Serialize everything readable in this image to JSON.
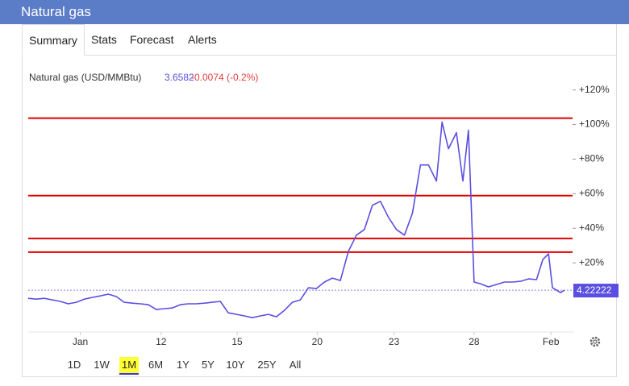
{
  "header": {
    "title": "Natural gas"
  },
  "tabs": [
    "Summary",
    "Stats",
    "Forecast",
    "Alerts"
  ],
  "selected_tab": "Summary",
  "ranges": [
    "1D",
    "1W",
    "1M",
    "6M",
    "1Y",
    "5Y",
    "10Y",
    "25Y",
    "All"
  ],
  "selected_range": "1M",
  "chart_data": {
    "type": "line",
    "price": "3.6582",
    "change": "-0.0074 (-0.2%)",
    "series": [
      {
        "name": "Natural gas (USD/MMBtu)",
        "color": "#5a4fe0",
        "x": [
          0,
          1,
          2,
          3,
          4,
          5,
          6,
          7,
          8,
          9,
          10,
          11,
          12,
          13,
          14,
          15,
          16,
          17,
          18,
          19,
          20,
          21,
          22,
          23,
          24,
          25,
          26,
          27,
          28,
          29,
          30,
          31,
          32,
          33,
          34,
          35,
          36,
          37,
          38,
          39,
          40,
          41,
          42,
          43,
          44,
          45,
          46,
          47,
          48,
          49,
          50,
          51,
          51.7,
          52.5,
          53.5,
          54.3,
          55,
          55.7,
          56.5,
          57.5,
          58.5,
          59.5,
          60.5,
          61.5,
          62.5,
          63.5,
          64.3,
          65,
          65.5,
          66.5,
          67
        ],
        "values": [
          -0.5,
          -1,
          -0.5,
          -1.4,
          -2.3,
          -3.7,
          -2.8,
          -1,
          0,
          0.9,
          1.9,
          0.5,
          -2.8,
          -3.3,
          -3.7,
          -4.2,
          -7,
          -6.5,
          -6.1,
          -4.2,
          -3.7,
          -3.7,
          -3.3,
          -2.8,
          -2.3,
          -8.9,
          -9.8,
          -10.7,
          -11.7,
          -10.7,
          -9.8,
          -11.2,
          -7.5,
          -2.8,
          -1.4,
          5.6,
          5.1,
          8.9,
          11.2,
          9.8,
          26.6,
          36,
          39.3,
          53.3,
          55.6,
          46.3,
          39.3,
          36,
          48.6,
          76.6,
          76.6,
          67.3,
          101.4,
          86,
          95.3,
          67.3,
          96.7,
          8.9,
          7.9,
          6.1,
          7.5,
          8.9,
          8.9,
          9.3,
          10.7,
          10.3,
          22,
          25.2,
          5.6,
          2.8,
          4.2
        ]
      }
    ],
    "hlines": [
      103.7,
      58.9,
      34.1,
      26.2
    ],
    "hline_color": "#e00000",
    "last_price": {
      "value": 4.2,
      "label": "4.22222"
    },
    "xlim": [
      0,
      67.5
    ],
    "xticks": [
      {
        "value": 6.5,
        "label": "Jan"
      },
      {
        "value": 16.6,
        "label": "12"
      },
      {
        "value": 26.1,
        "label": "15"
      },
      {
        "value": 36.1,
        "label": "20"
      },
      {
        "value": 45.7,
        "label": "23"
      },
      {
        "value": 55.7,
        "label": "28"
      },
      {
        "value": 65.3,
        "label": "Feb"
      }
    ],
    "ylim": [
      -20,
      131
    ],
    "yticks": [
      {
        "value": 20,
        "label": "+20%"
      },
      {
        "value": 40,
        "label": "+40%"
      },
      {
        "value": 60,
        "label": "+60%"
      },
      {
        "value": 80,
        "label": "+80%"
      },
      {
        "value": 100,
        "label": "+100%"
      },
      {
        "value": 120,
        "label": "+120%"
      }
    ]
  }
}
